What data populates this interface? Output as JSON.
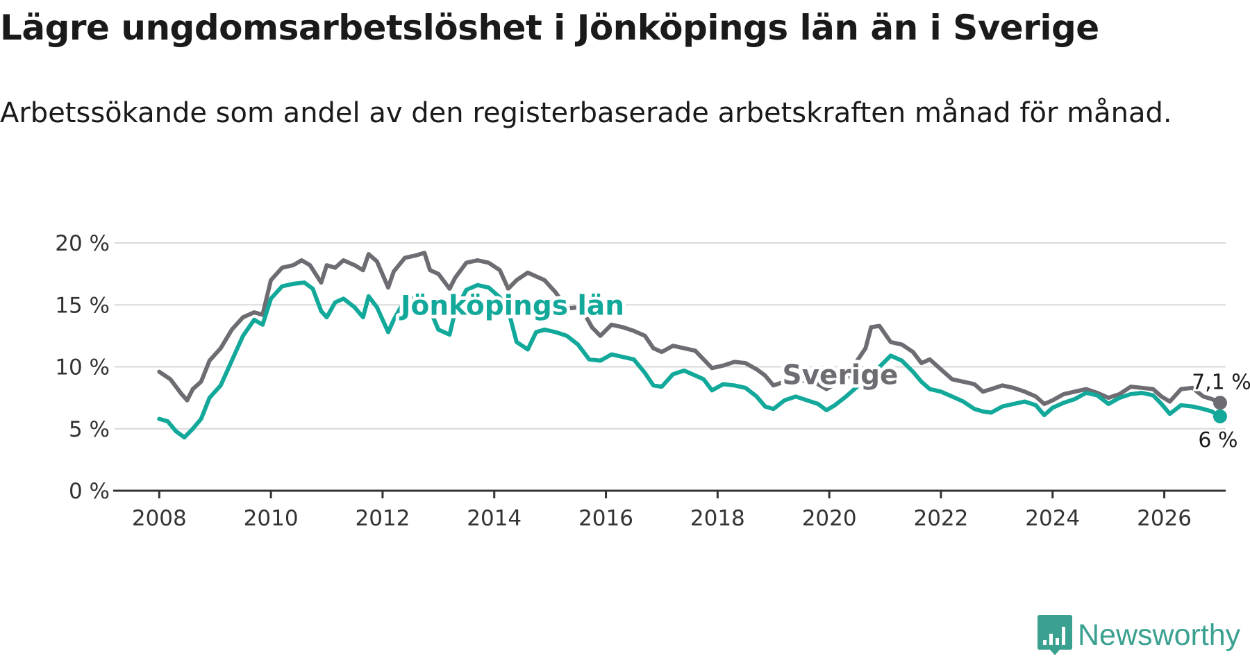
{
  "header": {
    "title": "Lägre ungdomsarbetslöshet i Jönköpings län än i Sverige",
    "subtitle": "Arbetssökande som andel av den registerbaserade arbetskraften månad för månad."
  },
  "brand": {
    "name": "Newsworthy"
  },
  "chart_data": {
    "type": "line",
    "title": "Lägre ungdomsarbetslöshet i Jönköpings län än i Sverige",
    "subtitle": "Arbetssökande som andel av den registerbaserade arbetskraften månad för månad.",
    "xlabel": "",
    "ylabel": "",
    "xlim": [
      2007.2,
      2027.1
    ],
    "ylim": [
      0,
      20
    ],
    "y_ticks": [
      0,
      5,
      10,
      15,
      20
    ],
    "y_tick_labels": [
      "0 %",
      "5 %",
      "10 %",
      "15 %",
      "20 %"
    ],
    "x_ticks": [
      2008,
      2010,
      2012,
      2014,
      2016,
      2018,
      2020,
      2022,
      2024,
      2026
    ],
    "x_tick_labels": [
      "2008",
      "2010",
      "2012",
      "2014",
      "2016",
      "2018",
      "2020",
      "2022",
      "2024",
      "2026"
    ],
    "grid": true,
    "series": [
      {
        "name": "Sverige",
        "color": "#6e6c72",
        "end_label": "7,1 %",
        "points": [
          [
            2008.0,
            9.6
          ],
          [
            2008.2,
            9.0
          ],
          [
            2008.4,
            7.8
          ],
          [
            2008.5,
            7.3
          ],
          [
            2008.6,
            8.2
          ],
          [
            2008.75,
            8.8
          ],
          [
            2008.9,
            10.5
          ],
          [
            2009.1,
            11.5
          ],
          [
            2009.3,
            13.0
          ],
          [
            2009.5,
            14.0
          ],
          [
            2009.7,
            14.4
          ],
          [
            2009.85,
            14.2
          ],
          [
            2010.0,
            17.0
          ],
          [
            2010.2,
            18.0
          ],
          [
            2010.4,
            18.2
          ],
          [
            2010.55,
            18.6
          ],
          [
            2010.7,
            18.2
          ],
          [
            2010.9,
            16.8
          ],
          [
            2011.0,
            18.2
          ],
          [
            2011.15,
            18.0
          ],
          [
            2011.3,
            18.6
          ],
          [
            2011.5,
            18.2
          ],
          [
            2011.65,
            17.8
          ],
          [
            2011.75,
            19.1
          ],
          [
            2011.9,
            18.5
          ],
          [
            2012.1,
            16.4
          ],
          [
            2012.2,
            17.7
          ],
          [
            2012.4,
            18.8
          ],
          [
            2012.6,
            19.0
          ],
          [
            2012.75,
            19.2
          ],
          [
            2012.85,
            17.8
          ],
          [
            2013.0,
            17.5
          ],
          [
            2013.2,
            16.3
          ],
          [
            2013.3,
            17.2
          ],
          [
            2013.5,
            18.4
          ],
          [
            2013.7,
            18.6
          ],
          [
            2013.9,
            18.4
          ],
          [
            2014.1,
            17.8
          ],
          [
            2014.25,
            16.3
          ],
          [
            2014.4,
            17.0
          ],
          [
            2014.6,
            17.6
          ],
          [
            2014.75,
            17.3
          ],
          [
            2014.9,
            17.0
          ],
          [
            2015.1,
            16.0
          ],
          [
            2015.3,
            14.7
          ],
          [
            2015.5,
            14.8
          ],
          [
            2015.6,
            14.4
          ],
          [
            2015.75,
            13.2
          ],
          [
            2015.9,
            12.5
          ],
          [
            2016.1,
            13.4
          ],
          [
            2016.3,
            13.2
          ],
          [
            2016.5,
            12.9
          ],
          [
            2016.7,
            12.5
          ],
          [
            2016.85,
            11.5
          ],
          [
            2017.0,
            11.2
          ],
          [
            2017.2,
            11.7
          ],
          [
            2017.4,
            11.5
          ],
          [
            2017.6,
            11.3
          ],
          [
            2017.75,
            10.6
          ],
          [
            2017.9,
            9.9
          ],
          [
            2018.1,
            10.1
          ],
          [
            2018.3,
            10.4
          ],
          [
            2018.5,
            10.3
          ],
          [
            2018.7,
            9.8
          ],
          [
            2018.85,
            9.3
          ],
          [
            2019.0,
            8.5
          ],
          [
            2019.2,
            8.8
          ],
          [
            2019.4,
            9.0
          ],
          [
            2019.6,
            8.8
          ],
          [
            2019.8,
            8.6
          ],
          [
            2019.95,
            8.2
          ],
          [
            2020.1,
            8.6
          ],
          [
            2020.3,
            9.0
          ],
          [
            2020.5,
            10.5
          ],
          [
            2020.65,
            11.5
          ],
          [
            2020.75,
            13.2
          ],
          [
            2020.9,
            13.3
          ],
          [
            2021.1,
            12.0
          ],
          [
            2021.3,
            11.8
          ],
          [
            2021.5,
            11.2
          ],
          [
            2021.65,
            10.3
          ],
          [
            2021.8,
            10.6
          ],
          [
            2022.0,
            9.8
          ],
          [
            2022.2,
            9.0
          ],
          [
            2022.4,
            8.8
          ],
          [
            2022.6,
            8.6
          ],
          [
            2022.75,
            8.0
          ],
          [
            2022.9,
            8.2
          ],
          [
            2023.1,
            8.5
          ],
          [
            2023.3,
            8.3
          ],
          [
            2023.5,
            8.0
          ],
          [
            2023.7,
            7.6
          ],
          [
            2023.85,
            7.0
          ],
          [
            2024.0,
            7.3
          ],
          [
            2024.2,
            7.8
          ],
          [
            2024.4,
            8.0
          ],
          [
            2024.6,
            8.2
          ],
          [
            2024.8,
            7.9
          ],
          [
            2025.0,
            7.5
          ],
          [
            2025.2,
            7.8
          ],
          [
            2025.4,
            8.4
          ],
          [
            2025.6,
            8.3
          ],
          [
            2025.8,
            8.2
          ],
          [
            2025.95,
            7.6
          ],
          [
            2026.1,
            7.2
          ],
          [
            2026.3,
            8.2
          ],
          [
            2026.5,
            8.3
          ],
          [
            2026.7,
            7.6
          ],
          [
            2026.85,
            7.4
          ],
          [
            2027.0,
            7.1
          ]
        ]
      },
      {
        "name": "Jönköpings län",
        "color": "#12a99a",
        "end_label": "6 %",
        "points": [
          [
            2008.0,
            5.8
          ],
          [
            2008.15,
            5.6
          ],
          [
            2008.3,
            4.8
          ],
          [
            2008.45,
            4.3
          ],
          [
            2008.6,
            5.0
          ],
          [
            2008.75,
            5.8
          ],
          [
            2008.9,
            7.5
          ],
          [
            2009.1,
            8.5
          ],
          [
            2009.3,
            10.5
          ],
          [
            2009.5,
            12.5
          ],
          [
            2009.7,
            13.8
          ],
          [
            2009.85,
            13.4
          ],
          [
            2010.0,
            15.5
          ],
          [
            2010.2,
            16.5
          ],
          [
            2010.4,
            16.7
          ],
          [
            2010.6,
            16.8
          ],
          [
            2010.75,
            16.3
          ],
          [
            2010.9,
            14.5
          ],
          [
            2011.0,
            14.0
          ],
          [
            2011.15,
            15.2
          ],
          [
            2011.3,
            15.5
          ],
          [
            2011.5,
            14.8
          ],
          [
            2011.65,
            14.0
          ],
          [
            2011.75,
            15.7
          ],
          [
            2011.9,
            14.8
          ],
          [
            2012.1,
            12.8
          ],
          [
            2012.2,
            13.8
          ],
          [
            2012.4,
            15.4
          ],
          [
            2012.6,
            15.6
          ],
          [
            2012.75,
            15.3
          ],
          [
            2012.85,
            14.6
          ],
          [
            2013.0,
            13.0
          ],
          [
            2013.2,
            12.6
          ],
          [
            2013.3,
            14.5
          ],
          [
            2013.5,
            16.2
          ],
          [
            2013.7,
            16.6
          ],
          [
            2013.9,
            16.4
          ],
          [
            2014.1,
            15.6
          ],
          [
            2014.25,
            14.6
          ],
          [
            2014.4,
            12.0
          ],
          [
            2014.6,
            11.4
          ],
          [
            2014.75,
            12.8
          ],
          [
            2014.9,
            13.0
          ],
          [
            2015.1,
            12.8
          ],
          [
            2015.3,
            12.5
          ],
          [
            2015.5,
            11.8
          ],
          [
            2015.7,
            10.6
          ],
          [
            2015.9,
            10.5
          ],
          [
            2016.1,
            11.0
          ],
          [
            2016.3,
            10.8
          ],
          [
            2016.5,
            10.6
          ],
          [
            2016.7,
            9.5
          ],
          [
            2016.85,
            8.5
          ],
          [
            2017.0,
            8.4
          ],
          [
            2017.2,
            9.4
          ],
          [
            2017.4,
            9.7
          ],
          [
            2017.6,
            9.3
          ],
          [
            2017.75,
            9.0
          ],
          [
            2017.9,
            8.1
          ],
          [
            2018.1,
            8.6
          ],
          [
            2018.3,
            8.5
          ],
          [
            2018.5,
            8.3
          ],
          [
            2018.7,
            7.6
          ],
          [
            2018.85,
            6.8
          ],
          [
            2019.0,
            6.6
          ],
          [
            2019.2,
            7.3
          ],
          [
            2019.4,
            7.6
          ],
          [
            2019.6,
            7.3
          ],
          [
            2019.8,
            7.0
          ],
          [
            2019.95,
            6.5
          ],
          [
            2020.1,
            6.9
          ],
          [
            2020.3,
            7.6
          ],
          [
            2020.5,
            8.4
          ],
          [
            2020.65,
            9.0
          ],
          [
            2020.75,
            9.4
          ],
          [
            2020.9,
            10.0
          ],
          [
            2021.1,
            10.9
          ],
          [
            2021.3,
            10.5
          ],
          [
            2021.5,
            9.6
          ],
          [
            2021.65,
            8.8
          ],
          [
            2021.8,
            8.2
          ],
          [
            2022.0,
            8.0
          ],
          [
            2022.2,
            7.6
          ],
          [
            2022.4,
            7.2
          ],
          [
            2022.6,
            6.6
          ],
          [
            2022.75,
            6.4
          ],
          [
            2022.9,
            6.3
          ],
          [
            2023.1,
            6.8
          ],
          [
            2023.3,
            7.0
          ],
          [
            2023.5,
            7.2
          ],
          [
            2023.7,
            6.9
          ],
          [
            2023.85,
            6.1
          ],
          [
            2024.0,
            6.7
          ],
          [
            2024.2,
            7.1
          ],
          [
            2024.4,
            7.4
          ],
          [
            2024.6,
            7.9
          ],
          [
            2024.8,
            7.7
          ],
          [
            2025.0,
            7.0
          ],
          [
            2025.2,
            7.5
          ],
          [
            2025.4,
            7.8
          ],
          [
            2025.6,
            7.9
          ],
          [
            2025.8,
            7.7
          ],
          [
            2025.95,
            7.0
          ],
          [
            2026.1,
            6.2
          ],
          [
            2026.3,
            6.9
          ],
          [
            2026.5,
            6.8
          ],
          [
            2026.7,
            6.6
          ],
          [
            2026.85,
            6.4
          ],
          [
            2027.0,
            6.0
          ]
        ]
      }
    ],
    "annotations": [
      {
        "text": "Jönköpings län",
        "series": "Jönköpings län"
      },
      {
        "text": "Sverige",
        "series": "Sverige"
      }
    ]
  }
}
